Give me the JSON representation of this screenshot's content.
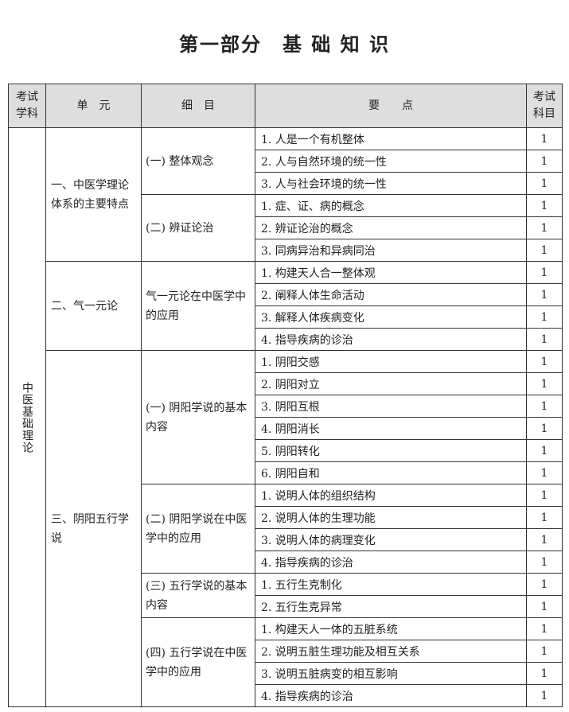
{
  "title": "第一部分　基 础 知 识",
  "header": {
    "subject": "考试\n学科",
    "unit": "单　元",
    "detail": "细　目",
    "points": "要　　点",
    "exam_subject": "考试\n科目"
  },
  "colors": {
    "header_bg": "#dedede",
    "border": "#333333"
  },
  "subject": "中医基础理论",
  "units": [
    {
      "name": "一、中医学理论体系的主要特点",
      "details": [
        {
          "name": "(一) 整体观念",
          "points": [
            {
              "text": "1. 人是一个有机整体",
              "exam": "1"
            },
            {
              "text": "2. 人与自然环境的统一性",
              "exam": "1"
            },
            {
              "text": "3. 人与社会环境的统一性",
              "exam": "1"
            }
          ]
        },
        {
          "name": "(二) 辨证论治",
          "points": [
            {
              "text": "1. 症、证、病的概念",
              "exam": "1"
            },
            {
              "text": "2. 辨证论治的概念",
              "exam": "1"
            },
            {
              "text": "3. 同病异治和异病同治",
              "exam": "1"
            }
          ]
        }
      ]
    },
    {
      "name": "二、气一元论",
      "details": [
        {
          "name": "气一元论在中医学中的应用",
          "points": [
            {
              "text": "1. 构建天人合一整体观",
              "exam": "1"
            },
            {
              "text": "2. 阐释人体生命活动",
              "exam": "1"
            },
            {
              "text": "3. 解释人体疾病变化",
              "exam": "1"
            },
            {
              "text": "4. 指导疾病的诊治",
              "exam": "1"
            }
          ]
        }
      ]
    },
    {
      "name": "三、阴阳五行学说",
      "details": [
        {
          "name": "(一) 阴阳学说的基本内容",
          "points": [
            {
              "text": "1. 阴阳交感",
              "exam": "1"
            },
            {
              "text": "2. 阴阳对立",
              "exam": "1"
            },
            {
              "text": "3. 阴阳互根",
              "exam": "1"
            },
            {
              "text": "4. 阴阳消长",
              "exam": "1"
            },
            {
              "text": "5. 阴阳转化",
              "exam": "1"
            },
            {
              "text": "6. 阴阳自和",
              "exam": "1"
            }
          ]
        },
        {
          "name": "(二) 阴阳学说在中医学中的应用",
          "points": [
            {
              "text": "1. 说明人体的组织结构",
              "exam": "1"
            },
            {
              "text": "2. 说明人体的生理功能",
              "exam": "1"
            },
            {
              "text": "3. 说明人体的病理变化",
              "exam": "1"
            },
            {
              "text": "4. 指导疾病的诊治",
              "exam": "1"
            }
          ]
        },
        {
          "name": "(三) 五行学说的基本内容",
          "points": [
            {
              "text": "1. 五行生克制化",
              "exam": "1"
            },
            {
              "text": "2. 五行生克异常",
              "exam": "1"
            }
          ]
        },
        {
          "name": "(四) 五行学说在中医学中的应用",
          "points": [
            {
              "text": "1. 构建天人一体的五脏系统",
              "exam": "1"
            },
            {
              "text": "2. 说明五脏生理功能及相互关系",
              "exam": "1"
            },
            {
              "text": "3. 说明五脏病变的相互影响",
              "exam": "1"
            },
            {
              "text": "4. 指导疾病的诊治",
              "exam": "1"
            }
          ]
        }
      ]
    }
  ]
}
